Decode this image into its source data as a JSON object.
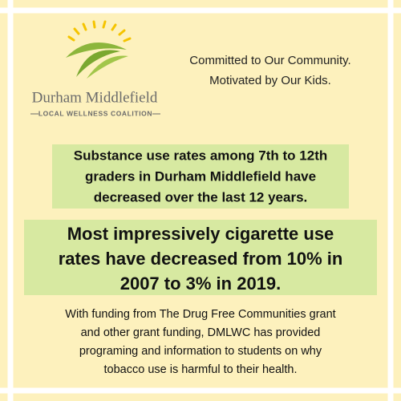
{
  "logo": {
    "name": "Durham Middlefield",
    "subtitle": "LOCAL WELLNESS COALITION"
  },
  "tagline": [
    "Committed to Our Community.",
    "Motivated by Our Kids."
  ],
  "highlight": [
    "Substance use rates among 7th to 12th",
    "graders in Durham Middlefield have",
    "decreased over the last 12 years."
  ],
  "headline": [
    "Most impressively cigarette use",
    "rates have decreased from 10% in",
    "2007 to 3% in 2019."
  ],
  "body": [
    "With funding from The Drug Free Communities grant",
    "and other grant funding, DMLWC has provided",
    "programing and information to students on why",
    "tobacco use is harmful to their health."
  ]
}
